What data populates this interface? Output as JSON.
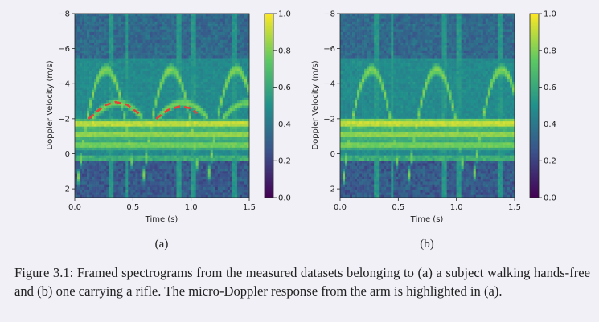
{
  "caption": "Figure 3.1: Framed spectrograms from the measured datasets belonging to (a) a subject walking hands-free and (b) one carrying a rifle. The micro-Doppler response from the arm is highlighted in (a).",
  "colormap": [
    "#440154",
    "#3b528b",
    "#21918c",
    "#5ec962",
    "#fde725"
  ],
  "highlight_color": "#e8413a",
  "chart_data": [
    {
      "type": "heatmap",
      "panel_label": "(a)",
      "xlabel": "Time (s)",
      "ylabel": "Doppler Velocity (m/s)",
      "xlim": [
        0.0,
        1.5
      ],
      "ylim": [
        2.5,
        -8
      ],
      "xticks": [
        "0.0",
        "0.5",
        "1.0",
        "1.5"
      ],
      "yticks": [
        "−8",
        "−6",
        "−4",
        "−2",
        "0",
        "2"
      ],
      "colorbar": {
        "range": [
          0.0,
          1.0
        ],
        "ticks": [
          "0.0",
          "0.2",
          "0.4",
          "0.6",
          "0.8",
          "1.0"
        ]
      },
      "highlight": "arm micro-Doppler response (dashed red arcs)",
      "highlight_arcs": [
        {
          "t": [
            0.12,
            0.25,
            0.35,
            0.45,
            0.55
          ],
          "v": [
            -2.0,
            -2.75,
            -2.95,
            -2.8,
            -2.3
          ]
        },
        {
          "t": [
            0.7,
            0.8,
            0.9,
            1.0,
            1.05
          ],
          "v": [
            -2.0,
            -2.5,
            -2.7,
            -2.6,
            -2.3
          ]
        }
      ]
    },
    {
      "type": "heatmap",
      "panel_label": "(b)",
      "xlabel": "Time (s)",
      "ylabel": "Doppler Velocity (m/s)",
      "xlim": [
        0.0,
        1.5
      ],
      "ylim": [
        2.5,
        -8
      ],
      "xticks": [
        "0.0",
        "0.5",
        "1.0",
        "1.5"
      ],
      "yticks": [
        "−8",
        "−6",
        "−4",
        "−2",
        "0",
        "2"
      ],
      "colorbar": {
        "range": [
          0.0,
          1.0
        ],
        "ticks": [
          "0.0",
          "0.2",
          "0.4",
          "0.6",
          "0.8",
          "1.0"
        ]
      }
    }
  ]
}
